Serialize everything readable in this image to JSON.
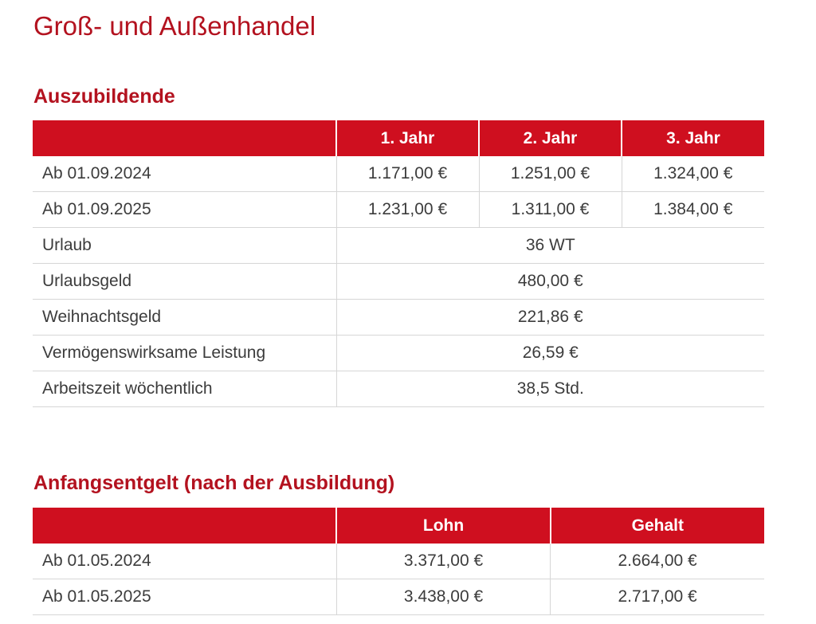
{
  "page": {
    "title": "Groß- und Außenhandel"
  },
  "sections": [
    {
      "title": "Auszubildende",
      "headers": [
        "",
        "1. Jahr",
        "2. Jahr",
        "3. Jahr"
      ],
      "year_rows": [
        {
          "label": "Ab 01.09.2024",
          "values": [
            "1.171,00 €",
            "1.251,00 €",
            "1.324,00 €"
          ]
        },
        {
          "label": "Ab 01.09.2025",
          "values": [
            "1.231,00 €",
            "1.311,00 €",
            "1.384,00 €"
          ]
        }
      ],
      "benefit_rows": [
        {
          "label": "Urlaub",
          "value": "36 WT"
        },
        {
          "label": "Urlaubsgeld",
          "value": "480,00 €"
        },
        {
          "label": "Weihnachtsgeld",
          "value": "221,86 €"
        },
        {
          "label": "Vermögenswirksame Leistung",
          "value": "26,59 €"
        },
        {
          "label": "Arbeitszeit wöchentlich",
          "value": "38,5 Std."
        }
      ]
    },
    {
      "title": "Anfangsentgelt (nach der Ausbildung)",
      "headers": [
        "",
        "Lohn",
        "Gehalt"
      ],
      "rows": [
        {
          "label": "Ab 01.05.2024",
          "values": [
            "3.371,00 €",
            "2.664,00 €"
          ]
        },
        {
          "label": "Ab 01.05.2025",
          "values": [
            "3.438,00 €",
            "2.717,00 €"
          ]
        }
      ]
    }
  ],
  "colors": {
    "accent": "#b3121f",
    "header_bg": "#cf0f1f",
    "text": "#3c3c3c",
    "grid": "#d6d6d6"
  }
}
